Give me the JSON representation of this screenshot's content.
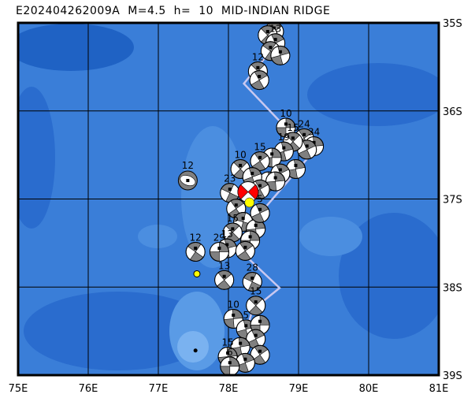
{
  "title": "E202404262009A  M=4.5  h=  10  MID-INDIAN RIDGE",
  "map": {
    "lon_range": [
      75,
      81
    ],
    "lat_range_south": [
      35,
      39
    ],
    "lon_ticks": [
      "75E",
      "76E",
      "77E",
      "78E",
      "79E",
      "80E",
      "81E"
    ],
    "lat_ticks": [
      "35S",
      "36S",
      "37S",
      "38S",
      "39S"
    ],
    "colors": {
      "ocean": "#3a7ed8",
      "deep": "#1f62c4",
      "shallow": "#6aa6ec",
      "ridge_line": "#c8c8f0",
      "mechanism_fill": "#808080",
      "main_event_fill": "#ff0000",
      "epicenter": "#ffff00"
    },
    "plate_boundary": [
      [
        78.73,
        35.08
      ],
      [
        78.54,
        35.38
      ],
      [
        78.22,
        35.69
      ],
      [
        79.18,
        36.49
      ],
      [
        78.51,
        37.11
      ],
      [
        78.17,
        37.59
      ],
      [
        78.73,
        38.01
      ],
      [
        78.34,
        38.26
      ],
      [
        78.11,
        38.95
      ]
    ],
    "main_event": {
      "lon": 78.28,
      "lat": 36.92,
      "epicenter_lon": 78.3,
      "epicenter_lat": 37.04
    },
    "other_markers": [
      {
        "type": "yellow-dot",
        "lon": 77.55,
        "lat": 37.85
      },
      {
        "type": "black-dot",
        "lon": 77.53,
        "lat": 38.72
      }
    ],
    "events": [
      {
        "lon": 78.65,
        "lat": 35.1,
        "depth": "",
        "rot": 10
      },
      {
        "lon": 78.56,
        "lat": 35.14,
        "depth": "14",
        "rot": 0
      },
      {
        "lon": 78.67,
        "lat": 35.23,
        "depth": "13",
        "rot": 20
      },
      {
        "lon": 78.6,
        "lat": 35.32,
        "depth": "",
        "rot": -10
      },
      {
        "lon": 78.74,
        "lat": 35.37,
        "depth": "",
        "rot": 30
      },
      {
        "lon": 78.42,
        "lat": 35.55,
        "depth": "12",
        "rot": 0
      },
      {
        "lon": 78.44,
        "lat": 35.65,
        "depth": "",
        "rot": 15
      },
      {
        "lon": 78.82,
        "lat": 36.19,
        "depth": "10",
        "rot": 45
      },
      {
        "lon": 79.08,
        "lat": 36.31,
        "depth": "24",
        "rot": 10
      },
      {
        "lon": 79.22,
        "lat": 36.4,
        "depth": "34",
        "rot": 40
      },
      {
        "lon": 79.12,
        "lat": 36.44,
        "depth": "",
        "rot": 20
      },
      {
        "lon": 78.92,
        "lat": 36.35,
        "depth": "15",
        "rot": 0
      },
      {
        "lon": 78.79,
        "lat": 36.46,
        "depth": "19",
        "rot": 30
      },
      {
        "lon": 78.62,
        "lat": 36.53,
        "depth": "",
        "rot": 45
      },
      {
        "lon": 78.45,
        "lat": 36.57,
        "depth": "15",
        "rot": 10
      },
      {
        "lon": 78.96,
        "lat": 36.66,
        "depth": "",
        "rot": 35
      },
      {
        "lon": 78.74,
        "lat": 36.71,
        "depth": "",
        "rot": 20
      },
      {
        "lon": 78.57,
        "lat": 36.8,
        "depth": "",
        "rot": 45
      },
      {
        "lon": 78.17,
        "lat": 36.66,
        "depth": "10",
        "rot": 0
      },
      {
        "lon": 78.34,
        "lat": 36.75,
        "depth": "",
        "rot": 25
      },
      {
        "lon": 78.67,
        "lat": 36.8,
        "depth": "",
        "rot": 40
      },
      {
        "lon": 78.45,
        "lat": 36.89,
        "depth": "",
        "rot": 15
      },
      {
        "lon": 78.02,
        "lat": 36.93,
        "depth": "23",
        "rot": -20
      },
      {
        "lon": 78.11,
        "lat": 37.11,
        "depth": "",
        "rot": 10
      },
      {
        "lon": 78.21,
        "lat": 37.26,
        "depth": "",
        "rot": -30
      },
      {
        "lon": 78.39,
        "lat": 37.34,
        "depth": "",
        "rot": 40
      },
      {
        "lon": 78.45,
        "lat": 37.16,
        "depth": "5",
        "rot": 20
      },
      {
        "lon": 78.31,
        "lat": 37.47,
        "depth": "",
        "rot": 45
      },
      {
        "lon": 78.06,
        "lat": 37.38,
        "depth": "15",
        "rot": 0
      },
      {
        "lon": 77.98,
        "lat": 37.56,
        "depth": "13",
        "rot": 30
      },
      {
        "lon": 78.24,
        "lat": 37.59,
        "depth": "",
        "rot": 10
      },
      {
        "lon": 77.87,
        "lat": 37.6,
        "depth": "29",
        "rot": 45
      },
      {
        "lon": 77.53,
        "lat": 37.6,
        "depth": "12",
        "rot": -10
      },
      {
        "lon": 77.94,
        "lat": 37.92,
        "depth": "13",
        "rot": 5
      },
      {
        "lon": 78.34,
        "lat": 37.94,
        "depth": "28",
        "rot": -20
      },
      {
        "lon": 78.39,
        "lat": 38.21,
        "depth": "15",
        "rot": 0
      },
      {
        "lon": 78.07,
        "lat": 38.36,
        "depth": "10",
        "rot": 40
      },
      {
        "lon": 78.25,
        "lat": 38.48,
        "depth": "5",
        "rot": 30
      },
      {
        "lon": 78.45,
        "lat": 38.43,
        "depth": "",
        "rot": 45
      },
      {
        "lon": 78.39,
        "lat": 38.59,
        "depth": "",
        "rot": 20
      },
      {
        "lon": 78.17,
        "lat": 38.68,
        "depth": "",
        "rot": 35
      },
      {
        "lon": 78.45,
        "lat": 38.77,
        "depth": "",
        "rot": 10
      },
      {
        "lon": 77.99,
        "lat": 38.79,
        "depth": "15",
        "rot": 40
      },
      {
        "lon": 78.24,
        "lat": 38.86,
        "depth": "",
        "rot": 25
      },
      {
        "lon": 78.02,
        "lat": 38.9,
        "depth": "6",
        "rot": 45
      }
    ],
    "special_event": {
      "lon": 77.42,
      "lat": 36.79,
      "depth": "12"
    }
  }
}
